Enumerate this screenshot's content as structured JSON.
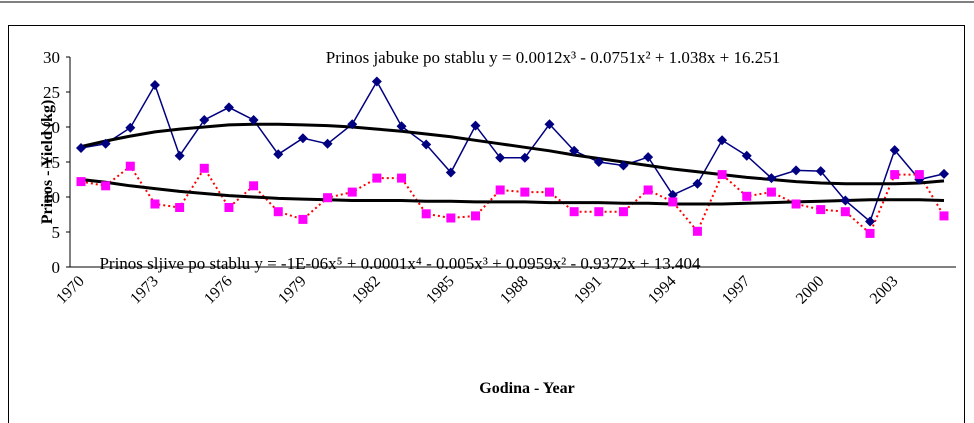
{
  "chart_data": {
    "type": "line",
    "y_label": "Prinos - Yield (kg)",
    "x_label": "Godina - Year",
    "annotations": [
      "Prinos jabuke po stablu y = 0.0012x³ - 0.0751x² + 1.038x + 16.251",
      "Prinos sljive po stablu y = -1E-06x⁵ + 0.0001x⁴ - 0.005x³ + 0.0959x² - 0.9372x + 13.404"
    ],
    "categories": [
      "1970",
      null,
      null,
      "1973",
      null,
      null,
      "1976",
      null,
      null,
      "1979",
      null,
      null,
      "1982",
      null,
      null,
      "1985",
      null,
      null,
      "1988",
      null,
      null,
      "1991",
      null,
      null,
      "1994",
      null,
      null,
      "1997",
      null,
      null,
      "2000",
      null,
      null,
      "2003",
      null,
      null
    ],
    "ylim": [
      0,
      30
    ],
    "yticks": [
      0,
      5,
      10,
      15,
      20,
      25,
      30
    ],
    "series": [
      {
        "color": "#000080",
        "line_color": "#000080",
        "marker": "diamond",
        "values": [
          17.0,
          17.6,
          19.9,
          26.0,
          15.9,
          21.0,
          22.8,
          21.0,
          16.1,
          18.4,
          17.6,
          20.4,
          26.5,
          20.1,
          17.5,
          13.5,
          20.2,
          15.6,
          15.6,
          20.4,
          16.6,
          15.0,
          14.5,
          15.7,
          10.3,
          11.9,
          18.1,
          15.9,
          12.7,
          13.8,
          13.7,
          9.5,
          6.5,
          16.7,
          12.5,
          13.3
        ],
        "trendline": {
          "color": "#000000",
          "values": [
            17.2,
            18.0,
            18.7,
            19.3,
            19.7,
            20.0,
            20.3,
            20.4,
            20.4,
            20.3,
            20.2,
            20.0,
            19.7,
            19.4,
            19.0,
            18.6,
            18.1,
            17.6,
            17.1,
            16.6,
            16.0,
            15.5,
            15.0,
            14.5,
            14.0,
            13.6,
            13.2,
            12.8,
            12.5,
            12.2,
            12.0,
            11.9,
            11.9,
            11.9,
            12.0,
            12.3
          ]
        }
      },
      {
        "color": "#ff00ff",
        "line_color": "#ff0000",
        "marker": "square",
        "values": [
          12.2,
          11.6,
          14.4,
          9.0,
          8.5,
          14.1,
          8.5,
          11.6,
          7.9,
          6.8,
          9.9,
          10.7,
          12.7,
          12.7,
          7.6,
          7.0,
          7.3,
          11.0,
          10.7,
          10.7,
          7.9,
          7.9,
          7.9,
          11.0,
          9.3,
          5.1,
          13.2,
          10.1,
          10.7,
          9.0,
          8.2,
          7.9,
          4.8,
          13.2,
          13.2,
          7.3
        ],
        "trendline": {
          "color": "#000000",
          "values": [
            12.5,
            12.1,
            11.6,
            11.2,
            10.8,
            10.5,
            10.2,
            10.0,
            9.8,
            9.7,
            9.6,
            9.5,
            9.5,
            9.5,
            9.4,
            9.4,
            9.3,
            9.3,
            9.3,
            9.2,
            9.2,
            9.2,
            9.1,
            9.1,
            9.0,
            9.0,
            9.0,
            9.1,
            9.2,
            9.3,
            9.4,
            9.5,
            9.6,
            9.6,
            9.6,
            9.5
          ]
        }
      }
    ]
  }
}
